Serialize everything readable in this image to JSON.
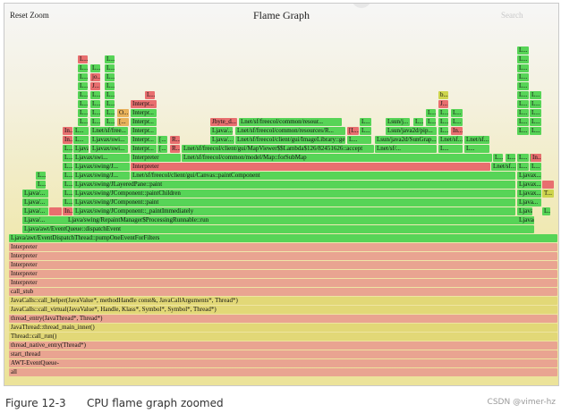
{
  "toolbar": {
    "reset_zoom": "Reset Zoom",
    "title": "Flame Graph",
    "search": "Search"
  },
  "caption": {
    "label": "Figure 12-3",
    "text": "CPU flame graph zoomed"
  },
  "watermark": "CSDN @vimer-hz",
  "colors": {
    "green": "#57d457",
    "red": "#e86f6f",
    "olive": "#cdd44d",
    "salmon": "#e9a491",
    "yellow": "#e2d877",
    "orange": "#e8b15a"
  },
  "frames": [
    {
      "l": 5,
      "w": 614,
      "c": "salmon",
      "t": "all"
    },
    {
      "l": 5,
      "w": 614,
      "c": "salmon",
      "t": "AWT-EventQueue-"
    },
    {
      "l": 5,
      "w": 614,
      "c": "salmon",
      "t": "start_thread"
    },
    {
      "l": 5,
      "w": 614,
      "c": "salmon",
      "t": "thread_native_entry(Thread*)"
    },
    {
      "l": 5,
      "w": 614,
      "c": "yellow",
      "t": "Thread::call_run()"
    },
    {
      "l": 5,
      "w": 614,
      "c": "yellow",
      "t": "JavaThread::thread_main_inner()"
    },
    {
      "l": 5,
      "w": 614,
      "c": "salmon",
      "t": "thread_entry(JavaThread*, Thread*)"
    },
    {
      "l": 5,
      "w": 614,
      "c": "yellow",
      "t": "JavaCalls::call_virtual(JavaValue*, Handle, Klass*, Symbol*, Symbol*, Thread*)"
    },
    {
      "l": 5,
      "w": 614,
      "c": "yellow",
      "t": "JavaCalls::call_helper(JavaValue*, methodHandle const&, JavaCallArguments*, Thread*)"
    },
    {
      "l": 5,
      "w": 614,
      "c": "salmon",
      "t": "call_stub"
    },
    {
      "l": 5,
      "w": 614,
      "c": "salmon",
      "t": "Interpreter"
    },
    {
      "l": 5,
      "w": 614,
      "c": "salmon",
      "t": "Interpreter"
    },
    {
      "l": 5,
      "w": 614,
      "c": "salmon",
      "t": "Interpreter"
    },
    {
      "l": 5,
      "w": 614,
      "c": "salmon",
      "t": "Interpreter"
    },
    {
      "l": 5,
      "w": 614,
      "c": "salmon",
      "t": "Interpreter"
    },
    {
      "l": 5,
      "w": 614,
      "c": "green",
      "t": "Ljava/awt/EventDispatchThread::pumpOneEventForFilters"
    },
    {
      "l": 20,
      "w": 573,
      "c": "green",
      "t": "Ljava/awt/EventQueue::dispatchEvent"
    },
    {
      "l": 20,
      "w": 573,
      "c": "green",
      "t": "Ljava/...",
      "x": [
        {
          "l": 69,
          "w": 490,
          "c": "green",
          "t": "Ljava/swing/RepaintManager$ProcessingRunnable::run"
        },
        {
          "l": 573,
          "w": 20,
          "c": "green",
          "t": "Ljava/..."
        }
      ]
    },
    {
      "l": 20,
      "w": 30,
      "c": "green",
      "t": "Ljava/...",
      "x": [
        {
          "l": 50,
          "w": 15,
          "c": "red",
          "t": ""
        },
        {
          "l": 65,
          "w": 12,
          "c": "red",
          "t": "In..."
        },
        {
          "l": 77,
          "w": 495,
          "c": "green",
          "t": "Ljavax/swing/JComponent::_paintImmediately"
        },
        {
          "l": 573,
          "w": 18,
          "c": "green",
          "t": "Ljava..."
        },
        {
          "l": 601,
          "w": 10,
          "c": "green",
          "t": "L..."
        }
      ]
    },
    {
      "l": 20,
      "w": 30,
      "c": "green",
      "t": "Ljava/...",
      "x": [
        {
          "l": 65,
          "w": 12,
          "c": "green",
          "t": "L..."
        },
        {
          "l": 77,
          "w": 495,
          "c": "green",
          "t": "Ljavax/swing/JComponent::paint"
        },
        {
          "l": 573,
          "w": 28,
          "c": "green",
          "t": "Ljava..."
        }
      ]
    },
    {
      "l": 20,
      "w": 30,
      "c": "green",
      "t": "Ljava/...",
      "x": [
        {
          "l": 65,
          "w": 12,
          "c": "green",
          "t": "L..."
        },
        {
          "l": 77,
          "w": 495,
          "c": "green",
          "t": "Ljavax/swing/JComponent::paintChildren"
        },
        {
          "l": 573,
          "w": 28,
          "c": "green",
          "t": "Ljavax..."
        },
        {
          "l": 601,
          "w": 14,
          "c": "olive",
          "t": "T..."
        }
      ]
    },
    {
      "l": 35,
      "w": 12,
      "c": "green",
      "t": "L...",
      "x": [
        {
          "l": 65,
          "w": 12,
          "c": "green",
          "t": "L..."
        },
        {
          "l": 77,
          "w": 495,
          "c": "green",
          "t": "Ljavax/swing/JLayeredPane::paint"
        },
        {
          "l": 573,
          "w": 28,
          "c": "green",
          "t": "Ljavax..."
        },
        {
          "l": 601,
          "w": 14,
          "c": "red",
          "t": ""
        }
      ]
    },
    {
      "l": 35,
      "w": 12,
      "c": "green",
      "t": "L...",
      "x": [
        {
          "l": 65,
          "w": 12,
          "c": "green",
          "t": "L..."
        },
        {
          "l": 77,
          "w": 64,
          "c": "green",
          "t": "Ljavax/swing/J..."
        },
        {
          "l": 141,
          "w": 431,
          "c": "green",
          "t": "Lnet/sf/freecol/client/gui/Canvas::paintComponent"
        },
        {
          "l": 573,
          "w": 28,
          "c": "green",
          "t": "Ljavax..."
        }
      ]
    },
    {
      "l": 65,
      "w": 12,
      "c": "green",
      "t": "L...",
      "x": [
        {
          "l": 77,
          "w": 64,
          "c": "green",
          "t": "Ljavax/swing/J..."
        },
        {
          "l": 141,
          "w": 403,
          "c": "red",
          "t": "Interpreter"
        },
        {
          "l": 544,
          "w": 29,
          "c": "green",
          "t": "Lnet/sf..."
        },
        {
          "l": 573,
          "w": 14,
          "c": "green",
          "t": "L..."
        },
        {
          "l": 587,
          "w": 14,
          "c": "green",
          "t": "L..."
        }
      ]
    },
    {
      "l": 65,
      "w": 12,
      "c": "green",
      "t": "L...",
      "x": [
        {
          "l": 77,
          "w": 64,
          "c": "green",
          "t": "Ljavax/swi..."
        },
        {
          "l": 141,
          "w": 57,
          "c": "green",
          "t": "Interpreter"
        },
        {
          "l": 198,
          "w": 348,
          "c": "green",
          "t": "Lnet/sf/freecol/common/model/Map::forSubMap"
        },
        {
          "l": 546,
          "w": 12,
          "c": "green",
          "t": "L..."
        },
        {
          "l": 560,
          "w": 12,
          "c": "green",
          "t": "L..."
        },
        {
          "l": 573,
          "w": 14,
          "c": "green",
          "t": "L..."
        },
        {
          "l": 587,
          "w": 14,
          "c": "green",
          "t": "L..."
        },
        {
          "l": 588,
          "w": 13,
          "c": "red",
          "t": "In..."
        }
      ]
    },
    {
      "l": 65,
      "w": 12,
      "c": "green",
      "t": "L...",
      "x": [
        {
          "l": 77,
          "w": 18,
          "c": "green",
          "t": "Ljava..."
        },
        {
          "l": 96,
          "w": 43,
          "c": "green",
          "t": "Ljavax/swi..."
        },
        {
          "l": 141,
          "w": 30,
          "c": "green",
          "t": "Interpr..."
        },
        {
          "l": 171,
          "w": 12,
          "c": "green",
          "t": "[..."
        },
        {
          "l": 185,
          "w": 12,
          "c": "red",
          "t": "R..."
        },
        {
          "l": 198,
          "w": 216,
          "c": "green",
          "t": "Lnet/sf/freecol/client/gui/MapViewer$$Lambda$126/82451626::accept"
        },
        {
          "l": 414,
          "w": 70,
          "c": "green",
          "t": "Lnet/sf/..."
        },
        {
          "l": 485,
          "w": 28,
          "c": "green",
          "t": "L..."
        },
        {
          "l": 514,
          "w": 29,
          "c": "green",
          "t": "L..."
        }
      ]
    },
    {
      "l": 65,
      "w": 12,
      "c": "red",
      "t": "In...",
      "x": [
        {
          "l": 77,
          "w": 18,
          "c": "green",
          "t": "L..."
        },
        {
          "l": 96,
          "w": 43,
          "c": "green",
          "t": "Ljavax/swi..."
        },
        {
          "l": 141,
          "w": 30,
          "c": "green",
          "t": "Interpr..."
        },
        {
          "l": 171,
          "w": 12,
          "c": "green",
          "t": "[..."
        },
        {
          "l": 185,
          "w": 12,
          "c": "red",
          "t": "R..."
        },
        {
          "l": 230,
          "w": 28,
          "c": "green",
          "t": "Ljava/..."
        },
        {
          "l": 258,
          "w": 124,
          "c": "green",
          "t": "Lnet/sf/freecol/client/gui/ImageLibrary::getBorder..."
        },
        {
          "l": 383,
          "w": 28,
          "c": "green",
          "t": "L..."
        },
        {
          "l": 414,
          "w": 70,
          "c": "green",
          "t": "Lsun/java2d/SunGrap..."
        },
        {
          "l": 485,
          "w": 28,
          "c": "green",
          "t": "Lnet/sf..."
        },
        {
          "l": 514,
          "w": 29,
          "c": "green",
          "t": "Lnet/sf..."
        }
      ]
    },
    {
      "l": 65,
      "w": 12,
      "c": "red",
      "t": "In...",
      "x": [
        {
          "l": 77,
          "w": 18,
          "c": "green",
          "t": "L..."
        },
        {
          "l": 96,
          "w": 43,
          "c": "green",
          "t": "Lnet/sf/free..."
        },
        {
          "l": 141,
          "w": 30,
          "c": "green",
          "t": "Interpr..."
        },
        {
          "l": 230,
          "w": 26,
          "c": "green",
          "t": "Ljava/..."
        },
        {
          "l": 258,
          "w": 124,
          "c": "green",
          "t": "Lnet/sf/freecol/common/resources/R..."
        },
        {
          "l": 383,
          "w": 14,
          "c": "red",
          "t": "[L..."
        },
        {
          "l": 397,
          "w": 14,
          "c": "green",
          "t": "L..."
        },
        {
          "l": 426,
          "w": 58,
          "c": "green",
          "t": "Lsun/java2d/pip..."
        },
        {
          "l": 485,
          "w": 12,
          "c": "green",
          "t": "L..."
        },
        {
          "l": 499,
          "w": 14,
          "c": "red",
          "t": "In..."
        },
        {
          "l": 573,
          "w": 14,
          "c": "green",
          "t": "L..."
        },
        {
          "l": 587,
          "w": 14,
          "c": "green",
          "t": "L..."
        }
      ]
    },
    {
      "l": 82,
      "w": 12,
      "c": "green",
      "t": "L...",
      "x": [
        {
          "l": 96,
          "w": 12,
          "c": "green",
          "t": "L..."
        },
        {
          "l": 112,
          "w": 12,
          "c": "green",
          "t": "L..."
        },
        {
          "l": 126,
          "w": 14,
          "c": "orange",
          "t": "[..."
        },
        {
          "l": 141,
          "w": 30,
          "c": "green",
          "t": "Interpr..."
        },
        {
          "l": 230,
          "w": 31,
          "c": "red",
          "t": "Jbyte_d..."
        },
        {
          "l": 262,
          "w": 116,
          "c": "green",
          "t": "Lnet/sf/freecol/common/resour..."
        },
        {
          "l": 397,
          "w": 14,
          "c": "green",
          "t": "L..."
        },
        {
          "l": 426,
          "w": 28,
          "c": "green",
          "t": "Lsun/j..."
        },
        {
          "l": 457,
          "w": 12,
          "c": "green",
          "t": "L..."
        },
        {
          "l": 471,
          "w": 12,
          "c": "green",
          "t": "L..."
        },
        {
          "l": 485,
          "w": 12,
          "c": "green",
          "t": "L..."
        },
        {
          "l": 499,
          "w": 14,
          "c": "green",
          "t": "L..."
        },
        {
          "l": 573,
          "w": 14,
          "c": "green",
          "t": "L..."
        },
        {
          "l": 587,
          "w": 14,
          "c": "green",
          "t": "L..."
        }
      ]
    },
    {
      "l": 82,
      "w": 12,
      "c": "green",
      "t": "L...",
      "x": [
        {
          "l": 96,
          "w": 12,
          "c": "green",
          "t": "L..."
        },
        {
          "l": 112,
          "w": 12,
          "c": "green",
          "t": "L..."
        },
        {
          "l": 126,
          "w": 14,
          "c": "orange",
          "t": "O..."
        },
        {
          "l": 141,
          "w": 30,
          "c": "green",
          "t": "Interpr..."
        },
        {
          "l": 471,
          "w": 12,
          "c": "green",
          "t": "L..."
        },
        {
          "l": 485,
          "w": 12,
          "c": "green",
          "t": "L..."
        },
        {
          "l": 499,
          "w": 14,
          "c": "green",
          "t": "L..."
        },
        {
          "l": 573,
          "w": 14,
          "c": "green",
          "t": "L..."
        },
        {
          "l": 587,
          "w": 14,
          "c": "green",
          "t": "L..."
        }
      ]
    },
    {
      "l": 82,
      "w": 12,
      "c": "green",
      "t": "L...",
      "x": [
        {
          "l": 96,
          "w": 12,
          "c": "green",
          "t": "L..."
        },
        {
          "l": 112,
          "w": 12,
          "c": "green",
          "t": "L..."
        },
        {
          "l": 141,
          "w": 30,
          "c": "red",
          "t": "Interpr..."
        },
        {
          "l": 485,
          "w": 12,
          "c": "red",
          "t": "J..."
        },
        {
          "l": 573,
          "w": 14,
          "c": "green",
          "t": "L..."
        },
        {
          "l": 587,
          "w": 14,
          "c": "green",
          "t": "L..."
        }
      ]
    },
    {
      "l": 82,
      "w": 12,
      "c": "green",
      "t": "L...",
      "x": [
        {
          "l": 96,
          "w": 12,
          "c": "green",
          "t": "L..."
        },
        {
          "l": 112,
          "w": 12,
          "c": "green",
          "t": "L..."
        },
        {
          "l": 157,
          "w": 12,
          "c": "red",
          "t": "L..."
        },
        {
          "l": 485,
          "w": 12,
          "c": "olive",
          "t": "b..."
        },
        {
          "l": 573,
          "w": 14,
          "c": "green",
          "t": "L..."
        },
        {
          "l": 587,
          "w": 14,
          "c": "green",
          "t": "L..."
        }
      ]
    },
    {
      "l": 82,
      "w": 12,
      "c": "green",
      "t": "L...",
      "x": [
        {
          "l": 96,
          "w": 12,
          "c": "red",
          "t": "J..."
        },
        {
          "l": 112,
          "w": 12,
          "c": "green",
          "t": "L..."
        },
        {
          "l": 573,
          "w": 14,
          "c": "green",
          "t": "L..."
        }
      ]
    },
    {
      "l": 82,
      "w": 12,
      "c": "green",
      "t": "L...",
      "x": [
        {
          "l": 96,
          "w": 12,
          "c": "red",
          "t": "jo..."
        },
        {
          "l": 112,
          "w": 12,
          "c": "green",
          "t": "L..."
        },
        {
          "l": 573,
          "w": 14,
          "c": "green",
          "t": "L..."
        }
      ]
    },
    {
      "l": 82,
      "w": 12,
      "c": "green",
      "t": "L...",
      "x": [
        {
          "l": 96,
          "w": 12,
          "c": "green",
          "t": "L..."
        },
        {
          "l": 112,
          "w": 12,
          "c": "green",
          "t": "L..."
        },
        {
          "l": 573,
          "w": 14,
          "c": "green",
          "t": "L..."
        }
      ]
    },
    {
      "l": 82,
      "w": 12,
      "c": "red",
      "t": "L...",
      "x": [
        {
          "l": 112,
          "w": 12,
          "c": "green",
          "t": "L..."
        },
        {
          "l": 573,
          "w": 14,
          "c": "green",
          "t": "L..."
        }
      ]
    },
    {
      "l": 573,
      "w": 14,
      "c": "green",
      "t": "L..."
    }
  ]
}
